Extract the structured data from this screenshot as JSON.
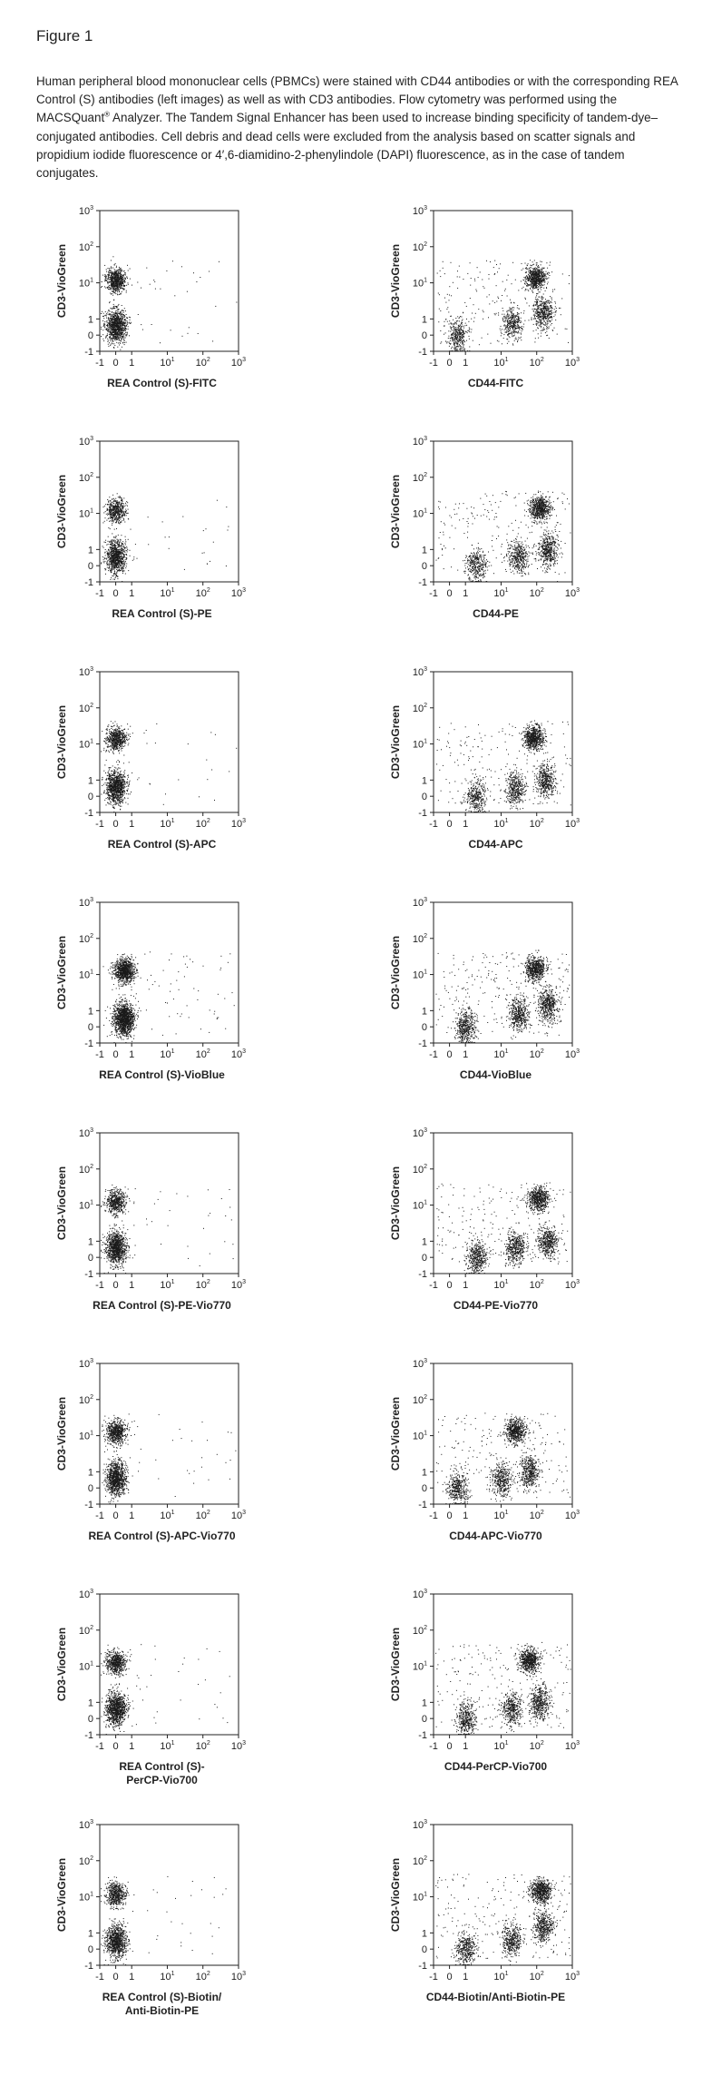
{
  "figure_title": "Figure 1",
  "caption": {
    "text_before_sup": "Human peripheral blood mononuclear cells (PBMCs) were stained with CD44 antibodies or with the corresponding REA Control (S) antibodies (left images) as well as with CD3 antibodies. Flow cytometry was performed using the MACSQuant",
    "sup": "®",
    "text_after_sup": " Analyzer. The Tandem Signal Enhancer has been used to increase binding specificity of tandem-dye–conjugated antibodies. Cell debris and dead cells were excluded from the analysis based on scatter signals and propidium iodide fluorescence or 4′,6-diamidino-2-phenylindole (DAPI) fluorescence, as in the case of tandem conjugates."
  },
  "colors": {
    "dots": "#1a1a1a",
    "axes": "#222222"
  },
  "axis_ticks": {
    "x": [
      {
        "label": "-1",
        "sup": ""
      },
      {
        "label": "0",
        "sup": ""
      },
      {
        "label": "1",
        "sup": ""
      },
      {
        "label": "10",
        "sup": "1"
      },
      {
        "label": "10",
        "sup": "2"
      },
      {
        "label": "10",
        "sup": "3"
      }
    ],
    "y": [
      {
        "label": "-1",
        "sup": ""
      },
      {
        "label": "0",
        "sup": ""
      },
      {
        "label": "1",
        "sup": ""
      },
      {
        "label": "10",
        "sup": "1"
      },
      {
        "label": "10",
        "sup": "2"
      },
      {
        "label": "10",
        "sup": "3"
      }
    ]
  },
  "chart_data": [
    {
      "type": "scatter",
      "xlabel": [
        "REA Control (S)-FITC"
      ],
      "ylabel": "CD3-VioGreen",
      "xscale": "biexponential",
      "yscale": "biexponential",
      "xlim": [
        -1,
        1000
      ],
      "ylim": [
        -1,
        1000
      ],
      "populations": [
        {
          "x": 0,
          "y": 12,
          "count": 700
        },
        {
          "x": 0,
          "y": 0.6,
          "count": 1000
        }
      ],
      "noise_points": 40
    },
    {
      "type": "scatter",
      "xlabel": [
        "CD44-FITC"
      ],
      "ylabel": "CD3-VioGreen",
      "xscale": "biexponential",
      "yscale": "biexponential",
      "xlim": [
        -1,
        1000
      ],
      "ylim": [
        -1,
        1000
      ],
      "populations": [
        {
          "x": 90,
          "y": 14,
          "count": 650
        },
        {
          "x": 150,
          "y": 1.5,
          "count": 450
        },
        {
          "x": 0.5,
          "y": 0,
          "count": 350
        },
        {
          "x": 20,
          "y": 0.8,
          "count": 350
        }
      ],
      "noise_points": 200
    },
    {
      "type": "scatter",
      "xlabel": [
        "REA Control (S)-PE"
      ],
      "ylabel": "CD3-VioGreen",
      "xscale": "biexponential",
      "yscale": "biexponential",
      "xlim": [
        -1,
        1000
      ],
      "ylim": [
        -1,
        1000
      ],
      "populations": [
        {
          "x": 0,
          "y": 12,
          "count": 500
        },
        {
          "x": 0,
          "y": 0.6,
          "count": 900
        }
      ],
      "noise_points": 40
    },
    {
      "type": "scatter",
      "xlabel": [
        "CD44-PE"
      ],
      "ylabel": "CD3-VioGreen",
      "xscale": "biexponential",
      "yscale": "biexponential",
      "xlim": [
        -1,
        1000
      ],
      "ylim": [
        -1,
        1000
      ],
      "populations": [
        {
          "x": 120,
          "y": 14,
          "count": 650
        },
        {
          "x": 200,
          "y": 1,
          "count": 450
        },
        {
          "x": 2,
          "y": 0,
          "count": 350
        },
        {
          "x": 30,
          "y": 0.6,
          "count": 400
        }
      ],
      "noise_points": 200
    },
    {
      "type": "scatter",
      "xlabel": [
        "REA Control (S)-APC"
      ],
      "ylabel": "CD3-VioGreen",
      "xscale": "biexponential",
      "yscale": "biexponential",
      "xlim": [
        -1,
        1000
      ],
      "ylim": [
        -1,
        1000
      ],
      "populations": [
        {
          "x": 0,
          "y": 14,
          "count": 600
        },
        {
          "x": 0,
          "y": 0.6,
          "count": 1000
        }
      ],
      "noise_points": 30
    },
    {
      "type": "scatter",
      "xlabel": [
        "CD44-APC"
      ],
      "ylabel": "CD3-VioGreen",
      "xscale": "biexponential",
      "yscale": "biexponential",
      "xlim": [
        -1,
        1000
      ],
      "ylim": [
        -1,
        1000
      ],
      "populations": [
        {
          "x": 80,
          "y": 15,
          "count": 650
        },
        {
          "x": 170,
          "y": 1,
          "count": 450
        },
        {
          "x": 2,
          "y": 0,
          "count": 350
        },
        {
          "x": 25,
          "y": 0.5,
          "count": 400
        }
      ],
      "noise_points": 200
    },
    {
      "type": "scatter",
      "xlabel": [
        "REA Control (S)-VioBlue"
      ],
      "ylabel": "CD3-VioGreen",
      "xscale": "biexponential",
      "yscale": "biexponential",
      "xlim": [
        -1,
        1000
      ],
      "ylim": [
        -1,
        1000
      ],
      "populations": [
        {
          "x": 0.5,
          "y": 13,
          "count": 900
        },
        {
          "x": 0.5,
          "y": 0.5,
          "count": 1300
        }
      ],
      "noise_points": 80
    },
    {
      "type": "scatter",
      "xlabel": [
        "CD44-VioBlue"
      ],
      "ylabel": "CD3-VioGreen",
      "xscale": "biexponential",
      "yscale": "biexponential",
      "xlim": [
        -1,
        1000
      ],
      "ylim": [
        -1,
        1000
      ],
      "populations": [
        {
          "x": 90,
          "y": 15,
          "count": 600
        },
        {
          "x": 200,
          "y": 1.5,
          "count": 500
        },
        {
          "x": 1,
          "y": 0,
          "count": 450
        },
        {
          "x": 30,
          "y": 0.8,
          "count": 450
        }
      ],
      "noise_points": 250
    },
    {
      "type": "scatter",
      "xlabel": [
        "REA Control (S)-PE-Vio770"
      ],
      "ylabel": "CD3-VioGreen",
      "xscale": "biexponential",
      "yscale": "biexponential",
      "xlim": [
        -1,
        1000
      ],
      "ylim": [
        -1,
        1000
      ],
      "populations": [
        {
          "x": 0,
          "y": 13,
          "count": 550
        },
        {
          "x": 0,
          "y": 0.6,
          "count": 1000
        }
      ],
      "noise_points": 40
    },
    {
      "type": "scatter",
      "xlabel": [
        "CD44-PE-Vio770"
      ],
      "ylabel": "CD3-VioGreen",
      "xscale": "biexponential",
      "yscale": "biexponential",
      "xlim": [
        -1,
        1000
      ],
      "ylim": [
        -1,
        1000
      ],
      "populations": [
        {
          "x": 110,
          "y": 15,
          "count": 600
        },
        {
          "x": 200,
          "y": 1,
          "count": 450
        },
        {
          "x": 2,
          "y": 0,
          "count": 450
        },
        {
          "x": 25,
          "y": 0.6,
          "count": 450
        }
      ],
      "noise_points": 200
    },
    {
      "type": "scatter",
      "xlabel": [
        "REA Control (S)-APC-Vio770"
      ],
      "ylabel": "CD3-VioGreen",
      "xscale": "biexponential",
      "yscale": "biexponential",
      "xlim": [
        -1,
        1000
      ],
      "ylim": [
        -1,
        1000
      ],
      "populations": [
        {
          "x": 0,
          "y": 13,
          "count": 650
        },
        {
          "x": 0,
          "y": 0.6,
          "count": 1000
        }
      ],
      "noise_points": 40
    },
    {
      "type": "scatter",
      "xlabel": [
        "CD44-APC-Vio770"
      ],
      "ylabel": "CD3-VioGreen",
      "xscale": "biexponential",
      "yscale": "biexponential",
      "xlim": [
        -1,
        1000
      ],
      "ylim": [
        -1,
        1000
      ],
      "populations": [
        {
          "x": 25,
          "y": 14,
          "count": 600
        },
        {
          "x": 60,
          "y": 1,
          "count": 450
        },
        {
          "x": 0.5,
          "y": 0,
          "count": 400
        },
        {
          "x": 10,
          "y": 0.5,
          "count": 400
        }
      ],
      "noise_points": 200
    },
    {
      "type": "scatter",
      "xlabel": [
        "REA Control (S)-",
        "PerCP-Vio700"
      ],
      "ylabel": "CD3-VioGreen",
      "xscale": "biexponential",
      "yscale": "biexponential",
      "xlim": [
        -1,
        1000
      ],
      "ylim": [
        -1,
        1000
      ],
      "populations": [
        {
          "x": 0,
          "y": 13,
          "count": 600
        },
        {
          "x": 0,
          "y": 0.6,
          "count": 1000
        }
      ],
      "noise_points": 40
    },
    {
      "type": "scatter",
      "xlabel": [
        "CD44-PerCP-Vio700"
      ],
      "ylabel": "CD3-VioGreen",
      "xscale": "biexponential",
      "yscale": "biexponential",
      "xlim": [
        -1,
        1000
      ],
      "ylim": [
        -1,
        1000
      ],
      "populations": [
        {
          "x": 60,
          "y": 15,
          "count": 650
        },
        {
          "x": 120,
          "y": 1,
          "count": 450
        },
        {
          "x": 1,
          "y": 0,
          "count": 400
        },
        {
          "x": 20,
          "y": 0.6,
          "count": 400
        }
      ],
      "noise_points": 200
    },
    {
      "type": "scatter",
      "xlabel": [
        "REA Control (S)-Biotin/",
        "Anti-Biotin-PE"
      ],
      "ylabel": "CD3-VioGreen",
      "xscale": "biexponential",
      "yscale": "biexponential",
      "xlim": [
        -1,
        1000
      ],
      "ylim": [
        -1,
        1000
      ],
      "populations": [
        {
          "x": 0,
          "y": 12,
          "count": 550
        },
        {
          "x": 0,
          "y": 0.5,
          "count": 900
        }
      ],
      "noise_points": 30
    },
    {
      "type": "scatter",
      "xlabel": [
        "CD44-Biotin/Anti-Biotin-PE"
      ],
      "ylabel": "CD3-VioGreen",
      "xscale": "biexponential",
      "yscale": "biexponential",
      "xlim": [
        -1,
        1000
      ],
      "ylim": [
        -1,
        1000
      ],
      "populations": [
        {
          "x": 130,
          "y": 15,
          "count": 650
        },
        {
          "x": 150,
          "y": 1.5,
          "count": 450
        },
        {
          "x": 1,
          "y": 0,
          "count": 400
        },
        {
          "x": 20,
          "y": 0.6,
          "count": 400
        }
      ],
      "noise_points": 200
    }
  ]
}
